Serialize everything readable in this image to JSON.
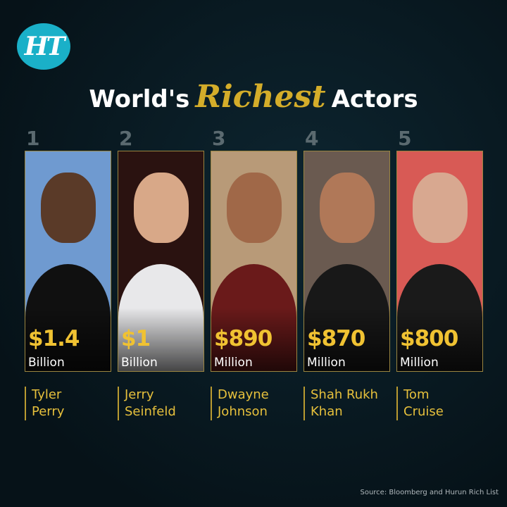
{
  "logo": {
    "text": "HT",
    "color": "#1ab0c8"
  },
  "title": {
    "before": "World's",
    "highlight": "Richest",
    "after": "Actors",
    "highlight_color": "#d4ad2a"
  },
  "actors": [
    {
      "rank": "1",
      "amount": "$1.4",
      "unit": "Billion",
      "first": "Tyler",
      "last": "Perry",
      "bg": "#6f9ad0"
    },
    {
      "rank": "2",
      "amount": "$1",
      "unit": "Billion",
      "first": "Jerry",
      "last": "Seinfeld",
      "bg": "#2a1210"
    },
    {
      "rank": "3",
      "amount": "$890",
      "unit": "Million",
      "first": "Dwayne",
      "last": "Johnson",
      "bg": "#b89a78"
    },
    {
      "rank": "4",
      "amount": "$870",
      "unit": "Million",
      "first": "Shah Rukh",
      "last": "Khan",
      "bg": "#6a5a50"
    },
    {
      "rank": "5",
      "amount": "$800",
      "unit": "Million",
      "first": "Tom",
      "last": "Cruise",
      "bg": "#d85a55"
    }
  ],
  "source": "Source: Bloomberg and Hurun Rich List"
}
